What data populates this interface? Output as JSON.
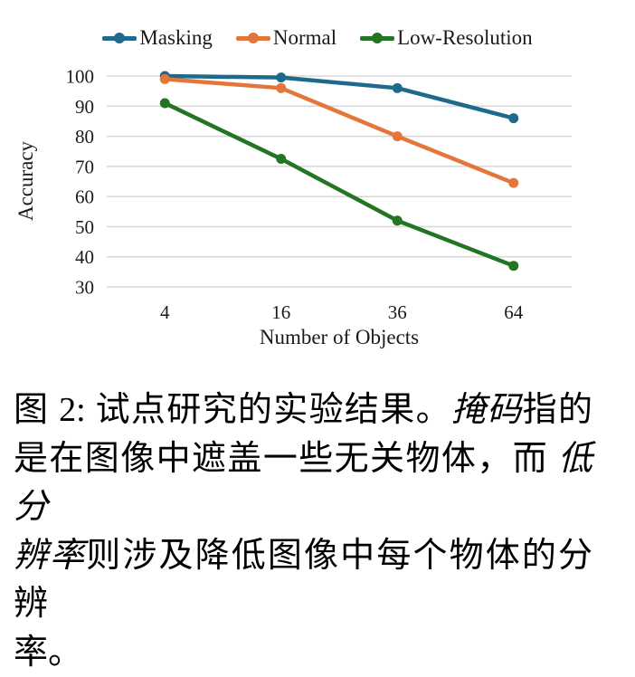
{
  "chart_data": {
    "type": "line",
    "categories": [
      "4",
      "16",
      "36",
      "64"
    ],
    "series": [
      {
        "name": "Masking",
        "color": "#1F6A8C",
        "values": [
          100,
          99.5,
          96,
          86
        ]
      },
      {
        "name": "Normal",
        "color": "#E5763B",
        "values": [
          99,
          96,
          80,
          64.5
        ]
      },
      {
        "name": "Low-Resolution",
        "color": "#237423",
        "values": [
          91,
          72.5,
          52,
          37
        ]
      }
    ],
    "xlabel": "Number of Objects",
    "ylabel": "Accuracy",
    "ylim": [
      30,
      100
    ],
    "yticks": [
      30,
      40,
      50,
      60,
      70,
      80,
      90,
      100
    ],
    "grid": "horizontal",
    "gridline_color": "#d9d9d9",
    "legend_position": "top",
    "marker": "circle",
    "background": "#ffffff"
  },
  "figure": {
    "caption_full": "图 2: 试点研究的实验结果。掩码指的是在图像中遮盖一些无关物体，而 低分辨率则涉及降低图像中每个物体的分辨率。",
    "caption_lines": [
      [
        {
          "t": "图 2: 试点研究的实验结果。",
          "em": false
        },
        {
          "t": "掩码",
          "em": true
        },
        {
          "t": "指的",
          "em": false
        }
      ],
      [
        {
          "t": "是在图像中遮盖一些无关物体，而 ",
          "em": false
        },
        {
          "t": "低分",
          "em": true
        }
      ],
      [
        {
          "t": "辨率",
          "em": true
        },
        {
          "t": "则涉及降低图像中每个物体的分辨",
          "em": false
        }
      ],
      [
        {
          "t": "率。",
          "em": false
        }
      ]
    ]
  }
}
